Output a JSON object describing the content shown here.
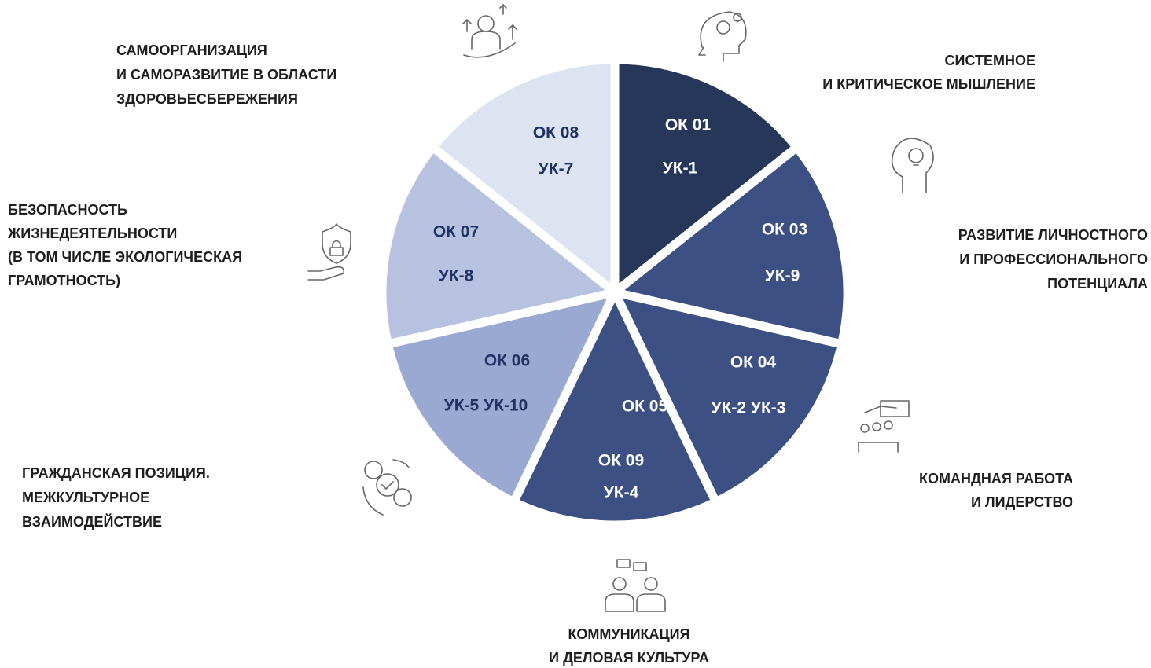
{
  "segments": [
    {
      "codes": [
        "ОК 01",
        "УК-1"
      ],
      "label": [
        "СИСТЕМНОЕ",
        "И КРИТИЧЕСКОЕ МЫШЛЕНИЕ"
      ]
    },
    {
      "codes": [
        "ОК 03",
        "УК-9"
      ],
      "label": [
        "РАЗВИТИЕ ЛИЧНОСТНОГО",
        "И ПРОФЕССИОНАЛЬНОГО",
        "ПОТЕНЦИАЛА"
      ]
    },
    {
      "codes": [
        "ОК 04",
        "УК-2  УК-3"
      ],
      "label": [
        "КОМАНДНАЯ РАБОТА",
        "И ЛИДЕРСТВО"
      ]
    },
    {
      "codes": [
        "ОК 05",
        "ОК 09",
        "УК-4"
      ],
      "label": [
        "КОММУНИКАЦИЯ",
        "И ДЕЛОВАЯ КУЛЬТУРА"
      ]
    },
    {
      "codes": [
        "ОК 06",
        "УК-5  УК-10"
      ],
      "label": [
        "ГРАЖДАНСКАЯ ПОЗИЦИЯ.",
        "МЕЖКУЛЬТУРНОЕ",
        "ВЗАИМОДЕЙСТВИЕ"
      ]
    },
    {
      "codes": [
        "ОК 07",
        "УК-8"
      ],
      "label": [
        "БЕЗОПАСНОСТЬ",
        "ЖИЗНЕДЕЯТЕЛЬНОСТИ",
        "(В ТОМ ЧИСЛЕ ЭКОЛОГИЧЕСКАЯ",
        "ГРАМОТНОСТЬ)"
      ]
    },
    {
      "codes": [
        "ОК 08",
        "УК-7"
      ],
      "label": [
        "САМООРГАНИЗАЦИЯ",
        "И САМОРАЗВИТИЕ В ОБЛАСТИ",
        "ЗДОРОВЬЕСБЕРЕЖЕНИЯ"
      ]
    }
  ]
}
